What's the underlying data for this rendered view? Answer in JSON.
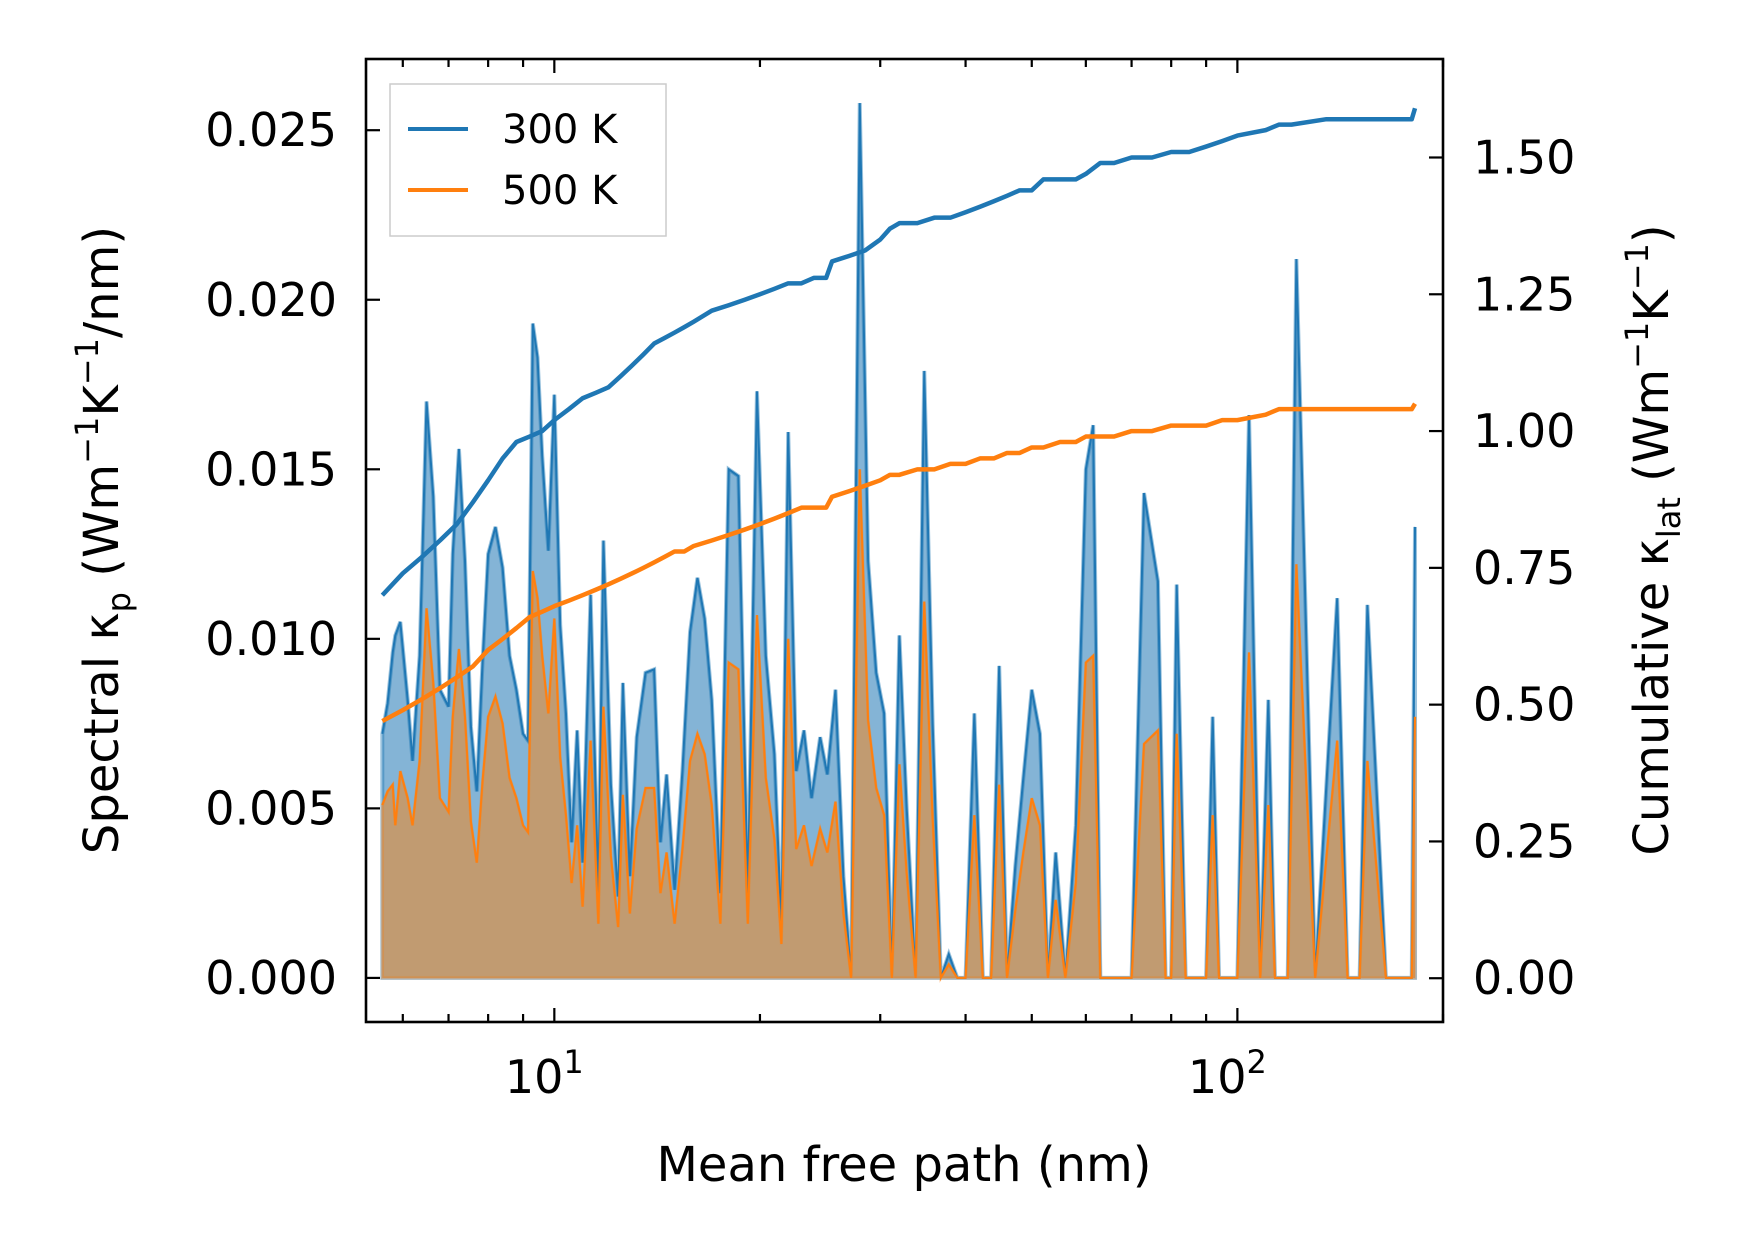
{
  "chart_data": {
    "type": "area+line",
    "xscale": "log",
    "xlabel": "Mean free path (nm)",
    "ylabel_left": {
      "pre": "Spectral κ",
      "sub": "p",
      "mid1": " (Wm",
      "sup1": "−1",
      "mid2": "K",
      "sup2": "−1",
      "post": "/nm)"
    },
    "ylabel_right": {
      "pre": "Cumulative κ",
      "sub": "lat",
      "mid1": " (Wm",
      "sup1": "−1",
      "mid2": "K",
      "sup2": "−1",
      "post": ")"
    },
    "xlim": [
      5.3,
      200
    ],
    "ylim_left": [
      -0.0013,
      0.0271
    ],
    "ylim_right": [
      -0.08,
      1.68
    ],
    "x_major_ticks": [
      10,
      100
    ],
    "x_tick_labels": [
      {
        "base": "10",
        "exp": "1"
      },
      {
        "base": "10",
        "exp": "2"
      }
    ],
    "y_left_ticks": [
      "0.000",
      "0.005",
      "0.010",
      "0.015",
      "0.020",
      "0.025"
    ],
    "y_right_ticks": [
      "0.00",
      "0.25",
      "0.50",
      "0.75",
      "1.00",
      "1.25",
      "1.50"
    ],
    "legend": {
      "position": "top-left",
      "entries": [
        {
          "label": "300 K",
          "color": "#1f77b4"
        },
        {
          "label": "500 K",
          "color": "#ff7f0e"
        }
      ]
    },
    "colors": {
      "s300": "#1f77b4",
      "s500": "#ff7f0e",
      "fill_overlap": "#c49a6c"
    },
    "spectral": {
      "x": [
        5.6,
        5.7,
        5.8,
        5.85,
        5.95,
        6.1,
        6.2,
        6.35,
        6.5,
        6.65,
        6.8,
        7.0,
        7.1,
        7.25,
        7.4,
        7.55,
        7.7,
        7.85,
        8.0,
        8.2,
        8.4,
        8.6,
        8.8,
        9.0,
        9.15,
        9.3,
        9.45,
        9.6,
        9.8,
        10.0,
        10.2,
        10.4,
        10.6,
        10.8,
        11.0,
        11.3,
        11.6,
        11.8,
        12.1,
        12.4,
        12.6,
        12.9,
        13.2,
        13.6,
        14.0,
        14.3,
        14.6,
        15.0,
        15.4,
        15.8,
        16.2,
        16.6,
        17.0,
        17.5,
        18.0,
        18.6,
        19.2,
        19.8,
        20.4,
        21.0,
        21.5,
        22.0,
        22.6,
        23.2,
        23.8,
        24.5,
        25.1,
        25.8,
        26.5,
        27.2,
        28.0,
        28.8,
        29.6,
        30.4,
        31.2,
        32.0,
        32.8,
        33.8,
        34.8,
        35.8,
        36.8,
        37.8,
        38.9,
        40.0,
        41.2,
        42.4,
        43.6,
        44.8,
        46.0,
        47.3,
        48.6,
        50.0,
        51.4,
        52.8,
        54.2,
        56.0,
        58.0,
        60.0,
        61.5,
        63.0,
        64.5,
        66.0,
        67.5,
        70.0,
        73.0,
        76.5,
        78.5,
        80.0,
        81.5,
        84.0,
        87.0,
        90.0,
        92.0,
        94.0,
        96.0,
        100.0,
        104.0,
        108.0,
        111.0,
        113.5,
        116.0,
        118.5,
        122.0,
        130.0,
        140.0,
        145.0,
        148.0,
        151.0,
        155.0,
        165.0,
        178.0,
        180.0,
        182.0
      ],
      "k300": [
        0.0072,
        0.0081,
        0.0096,
        0.0101,
        0.0105,
        0.0082,
        0.0064,
        0.0095,
        0.017,
        0.0142,
        0.0085,
        0.008,
        0.0125,
        0.0156,
        0.0123,
        0.0074,
        0.0055,
        0.0093,
        0.0125,
        0.0133,
        0.0121,
        0.0095,
        0.0085,
        0.0072,
        0.007,
        0.0193,
        0.0183,
        0.0154,
        0.0126,
        0.0172,
        0.0104,
        0.0078,
        0.004,
        0.0073,
        0.0034,
        0.0113,
        0.0025,
        0.0129,
        0.0057,
        0.0024,
        0.0087,
        0.003,
        0.0071,
        0.009,
        0.0091,
        0.004,
        0.006,
        0.0026,
        0.0061,
        0.0102,
        0.0118,
        0.0106,
        0.0082,
        0.0025,
        0.015,
        0.0148,
        0.0025,
        0.0173,
        0.0095,
        0.0066,
        0.0015,
        0.0161,
        0.0061,
        0.0073,
        0.0053,
        0.0071,
        0.006,
        0.0085,
        0.003,
        0.0,
        0.0258,
        0.0123,
        0.009,
        0.0078,
        0.0,
        0.0101,
        0.005,
        0.0,
        0.0179,
        0.0075,
        0.0,
        0.0007,
        0.0,
        0.0,
        0.0078,
        0.0,
        0.0,
        0.0092,
        0.0,
        0.0033,
        0.0059,
        0.0085,
        0.0072,
        0.0,
        0.0037,
        0.0,
        0.0045,
        0.015,
        0.0163,
        0.0,
        0.0,
        0.0,
        0.0,
        0.0,
        0.0143,
        0.0117,
        0.0,
        0.0,
        0.0116,
        0.0,
        0.0,
        0.0,
        0.0077,
        0.0,
        0.0,
        0.0,
        0.0166,
        0.0,
        0.0082,
        0.0,
        0.0,
        0.0,
        0.0212,
        0.0,
        0.0112,
        0.0,
        0.0,
        0.0,
        0.011,
        0.0,
        0.0,
        0.0,
        0.0133
      ],
      "k500": [
        0.0051,
        0.0055,
        0.0057,
        0.0045,
        0.0061,
        0.0053,
        0.0045,
        0.0064,
        0.0109,
        0.0087,
        0.0053,
        0.0049,
        0.0077,
        0.0097,
        0.0077,
        0.0046,
        0.0034,
        0.0058,
        0.0077,
        0.0083,
        0.0075,
        0.0059,
        0.0053,
        0.0045,
        0.0043,
        0.012,
        0.0112,
        0.0095,
        0.0078,
        0.0106,
        0.0065,
        0.0048,
        0.0028,
        0.0045,
        0.0021,
        0.007,
        0.0016,
        0.008,
        0.0036,
        0.0015,
        0.0054,
        0.0019,
        0.0044,
        0.0056,
        0.0056,
        0.0025,
        0.0037,
        0.0016,
        0.0038,
        0.0064,
        0.0072,
        0.0066,
        0.0051,
        0.0016,
        0.0093,
        0.0091,
        0.0016,
        0.0107,
        0.0059,
        0.0041,
        0.001,
        0.01,
        0.0038,
        0.0045,
        0.0033,
        0.0044,
        0.0037,
        0.0052,
        0.0019,
        0.0,
        0.015,
        0.0076,
        0.0056,
        0.0048,
        0.0,
        0.0063,
        0.0031,
        0.0,
        0.0111,
        0.0047,
        0.0,
        0.0004,
        0.0,
        0.0,
        0.0048,
        0.0,
        0.0,
        0.0057,
        0.0,
        0.002,
        0.0037,
        0.0053,
        0.0045,
        0.0,
        0.0023,
        0.0,
        0.0028,
        0.0093,
        0.0095,
        0.0,
        0.0,
        0.0,
        0.0,
        0.0,
        0.0069,
        0.0073,
        0.0,
        0.0,
        0.0072,
        0.0,
        0.0,
        0.0,
        0.0048,
        0.0,
        0.0,
        0.0,
        0.0096,
        0.0,
        0.0051,
        0.0,
        0.0,
        0.0,
        0.0122,
        0.0,
        0.007,
        0.0,
        0.0,
        0.0,
        0.0064,
        0.0,
        0.0,
        0.0,
        0.0077
      ]
    },
    "cumulative": {
      "x": [
        5.6,
        6.0,
        6.4,
        6.8,
        7.2,
        7.6,
        8.0,
        8.4,
        8.8,
        9.2,
        9.6,
        10.0,
        10.5,
        11.0,
        11.5,
        12.0,
        12.5,
        13.0,
        13.5,
        14.0,
        14.5,
        15.0,
        15.5,
        16.0,
        17.0,
        18.0,
        19.0,
        20.0,
        21.0,
        22.0,
        23.0,
        24.0,
        25.0,
        25.5,
        27.0,
        28.5,
        30.0,
        31.0,
        32.0,
        34.0,
        36.0,
        38.0,
        40.0,
        42.0,
        44.0,
        46.0,
        48.0,
        50.0,
        52.0,
        55.0,
        58.0,
        60.0,
        63.0,
        66.0,
        70.0,
        75.0,
        80.0,
        85.0,
        90.0,
        95.0,
        100.0,
        110.0,
        115.0,
        120.0,
        135.0,
        145.0,
        150.0,
        165.0,
        180.0,
        182.0
      ],
      "c300": [
        0.7,
        0.74,
        0.77,
        0.8,
        0.83,
        0.87,
        0.91,
        0.95,
        0.98,
        0.99,
        1.0,
        1.02,
        1.04,
        1.06,
        1.07,
        1.08,
        1.1,
        1.12,
        1.14,
        1.16,
        1.17,
        1.18,
        1.19,
        1.2,
        1.22,
        1.23,
        1.24,
        1.25,
        1.26,
        1.27,
        1.27,
        1.28,
        1.28,
        1.31,
        1.32,
        1.33,
        1.35,
        1.37,
        1.38,
        1.38,
        1.39,
        1.39,
        1.4,
        1.41,
        1.42,
        1.43,
        1.44,
        1.44,
        1.46,
        1.46,
        1.46,
        1.47,
        1.49,
        1.49,
        1.5,
        1.5,
        1.51,
        1.51,
        1.52,
        1.53,
        1.54,
        1.55,
        1.56,
        1.56,
        1.57,
        1.57,
        1.57,
        1.57,
        1.57,
        1.59
      ],
      "c500": [
        0.47,
        0.49,
        0.51,
        0.53,
        0.55,
        0.57,
        0.6,
        0.62,
        0.64,
        0.66,
        0.67,
        0.68,
        0.69,
        0.7,
        0.71,
        0.72,
        0.73,
        0.74,
        0.75,
        0.76,
        0.77,
        0.78,
        0.78,
        0.79,
        0.8,
        0.81,
        0.82,
        0.83,
        0.84,
        0.85,
        0.86,
        0.86,
        0.86,
        0.88,
        0.89,
        0.9,
        0.91,
        0.92,
        0.92,
        0.93,
        0.93,
        0.94,
        0.94,
        0.95,
        0.95,
        0.96,
        0.96,
        0.97,
        0.97,
        0.98,
        0.98,
        0.99,
        0.99,
        0.99,
        1.0,
        1.0,
        1.01,
        1.01,
        1.01,
        1.02,
        1.02,
        1.03,
        1.04,
        1.04,
        1.04,
        1.04,
        1.04,
        1.04,
        1.04,
        1.05
      ]
    }
  }
}
